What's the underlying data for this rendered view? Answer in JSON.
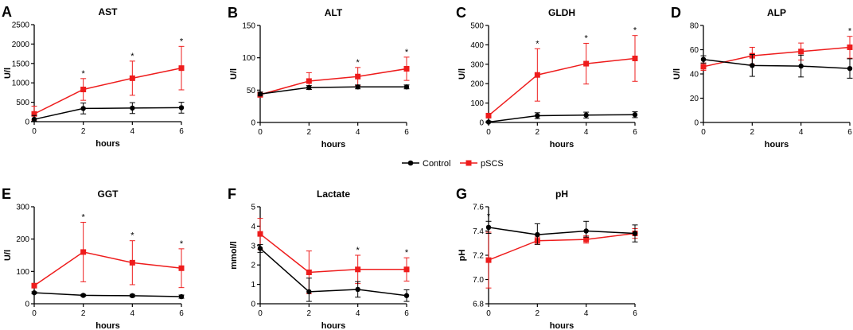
{
  "legend": {
    "placement": "center",
    "control_label": "Control",
    "pscs_label": "pSCS"
  },
  "colors": {
    "control": "#000000",
    "pscs": "#ee1c1c",
    "axis": "#000000"
  },
  "chart_data": [
    {
      "panel": "A",
      "type": "line",
      "title": "AST",
      "xlabel": "hours",
      "ylabel": "U/l",
      "x": [
        0,
        2,
        4,
        6
      ],
      "xticks": [
        0,
        2,
        4,
        6
      ],
      "ylim": [
        0,
        2500
      ],
      "yticks": [
        0,
        500,
        1000,
        1500,
        2000,
        2500
      ],
      "series": [
        {
          "name": "Control",
          "values": [
            60,
            340,
            350,
            360
          ],
          "err_up": [
            100,
            140,
            140,
            140
          ],
          "err_down": [
            50,
            140,
            140,
            140
          ]
        },
        {
          "name": "pSCS",
          "values": [
            200,
            830,
            1120,
            1380
          ],
          "err_up": [
            200,
            280,
            440,
            560
          ],
          "err_down": [
            160,
            280,
            440,
            560
          ]
        }
      ],
      "stars": [
        2,
        4,
        6
      ]
    },
    {
      "panel": "B",
      "type": "line",
      "title": "ALT",
      "xlabel": "hours",
      "ylabel": "U/l",
      "x": [
        0,
        2,
        4,
        6
      ],
      "xticks": [
        0,
        2,
        4,
        6
      ],
      "ylim": [
        0,
        150
      ],
      "yticks": [
        0,
        50,
        100,
        150
      ],
      "series": [
        {
          "name": "Control",
          "values": [
            44,
            54,
            55,
            55
          ],
          "err_up": [
            3,
            3,
            3,
            3
          ],
          "err_down": [
            3,
            3,
            3,
            3
          ]
        },
        {
          "name": "pSCS",
          "values": [
            43,
            64,
            71,
            83
          ],
          "err_up": [
            4,
            13,
            14,
            18
          ],
          "err_down": [
            4,
            13,
            14,
            18
          ]
        }
      ],
      "stars": [
        4,
        6
      ]
    },
    {
      "panel": "C",
      "type": "line",
      "title": "GLDH",
      "xlabel": "hours",
      "ylabel": "U/l",
      "x": [
        0,
        2,
        4,
        6
      ],
      "xticks": [
        0,
        2,
        4,
        6
      ],
      "ylim": [
        0,
        500
      ],
      "yticks": [
        0,
        100,
        200,
        300,
        400,
        500
      ],
      "series": [
        {
          "name": "Control",
          "values": [
            2,
            35,
            38,
            40
          ],
          "err_up": [
            5,
            15,
            15,
            15
          ],
          "err_down": [
            2,
            15,
            15,
            15
          ]
        },
        {
          "name": "pSCS",
          "values": [
            35,
            245,
            303,
            330
          ],
          "err_up": [
            10,
            135,
            105,
            118
          ],
          "err_down": [
            10,
            135,
            105,
            118
          ]
        }
      ],
      "stars": [
        2,
        4,
        6
      ]
    },
    {
      "panel": "D",
      "type": "line",
      "title": "ALP",
      "xlabel": "hours",
      "ylabel": "U/l",
      "x": [
        0,
        2,
        4,
        6
      ],
      "xticks": [
        0,
        2,
        4,
        6
      ],
      "ylim": [
        0,
        80
      ],
      "yticks": [
        0,
        20,
        40,
        60,
        80
      ],
      "series": [
        {
          "name": "Control",
          "values": [
            52,
            47,
            46.5,
            44.5
          ],
          "err_up": [
            3,
            9,
            9,
            8
          ],
          "err_down": [
            3,
            9,
            9,
            8
          ]
        },
        {
          "name": "pSCS",
          "values": [
            46,
            55,
            58.5,
            62
          ],
          "err_up": [
            3,
            7,
            7,
            9
          ],
          "err_down": [
            3,
            7,
            7,
            9
          ]
        }
      ],
      "stars": [
        6
      ]
    },
    {
      "panel": "E",
      "type": "line",
      "title": "GGT",
      "xlabel": "hours",
      "ylabel": "U/l",
      "x": [
        0,
        2,
        4,
        6
      ],
      "xticks": [
        0,
        2,
        4,
        6
      ],
      "ylim": [
        0,
        300
      ],
      "yticks": [
        0,
        100,
        200,
        300
      ],
      "series": [
        {
          "name": "Control",
          "values": [
            34,
            26,
            25,
            22
          ],
          "err_up": [
            3,
            3,
            4,
            5
          ],
          "err_down": [
            3,
            3,
            4,
            5
          ]
        },
        {
          "name": "pSCS",
          "values": [
            56,
            160,
            127,
            110
          ],
          "err_up": [
            5,
            92,
            68,
            60
          ],
          "err_down": [
            5,
            92,
            68,
            60
          ]
        }
      ],
      "stars": [
        2,
        4,
        6
      ]
    },
    {
      "panel": "F",
      "type": "line",
      "title": "Lactate",
      "xlabel": "hours",
      "ylabel": "mmol/l",
      "x": [
        0,
        2,
        4,
        6
      ],
      "xticks": [
        0,
        2,
        4,
        6
      ],
      "ylim": [
        0,
        5
      ],
      "yticks": [
        0,
        1,
        2,
        3,
        4,
        5
      ],
      "series": [
        {
          "name": "Control",
          "values": [
            2.85,
            0.62,
            0.74,
            0.42
          ],
          "err_up": [
            0.2,
            0.7,
            0.4,
            0.3
          ],
          "err_down": [
            0.2,
            0.5,
            0.4,
            0.3
          ]
        },
        {
          "name": "pSCS",
          "values": [
            3.6,
            1.62,
            1.77,
            1.77
          ],
          "err_up": [
            0.8,
            1.1,
            0.73,
            0.6
          ],
          "err_down": [
            0.8,
            1.1,
            0.73,
            0.6
          ]
        }
      ],
      "stars": [
        4,
        6
      ]
    },
    {
      "panel": "G",
      "type": "line",
      "title": "pH",
      "xlabel": "hours",
      "ylabel": "pH",
      "x": [
        0,
        2,
        4,
        6
      ],
      "xticks": [
        0,
        2,
        4,
        6
      ],
      "ylim": [
        6.8,
        7.6
      ],
      "yticks": [
        6.8,
        7.0,
        7.2,
        7.4,
        7.6
      ],
      "ytick_decimals": 1,
      "series": [
        {
          "name": "Control",
          "values": [
            7.43,
            7.37,
            7.4,
            7.38
          ],
          "err_up": [
            0.05,
            0.09,
            0.08,
            0.07
          ],
          "err_down": [
            0.05,
            0.08,
            0.05,
            0.07
          ]
        },
        {
          "name": "pSCS",
          "values": [
            7.16,
            7.32,
            7.33,
            7.38
          ],
          "err_up": [
            0.23,
            0.03,
            0.03,
            0.04
          ],
          "err_down": [
            0.23,
            0.03,
            0.03,
            0.04
          ]
        }
      ],
      "stars": [
        0
      ]
    }
  ]
}
